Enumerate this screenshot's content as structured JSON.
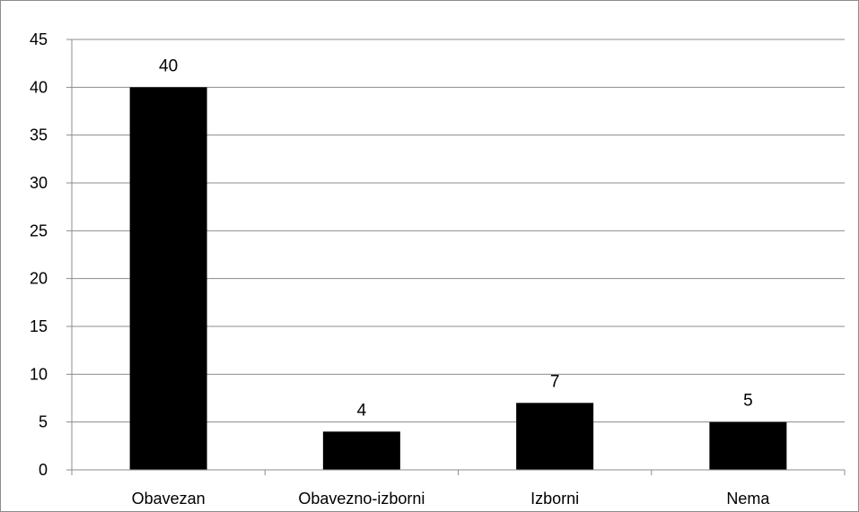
{
  "chart_data": {
    "type": "bar",
    "title": "",
    "xlabel": "",
    "ylabel": "",
    "categories": [
      "Obavezan",
      "Obavezno-izborni",
      "Izborni",
      "Nema"
    ],
    "values": [
      40,
      4,
      7,
      5
    ],
    "ylim": [
      0,
      45
    ],
    "yticks": [
      0,
      5,
      10,
      15,
      20,
      25,
      30,
      35,
      40,
      45
    ],
    "grid": true,
    "legend": "none",
    "data_labels": true,
    "bar_color": "#000000",
    "grid_color": "#8c8c8c"
  }
}
